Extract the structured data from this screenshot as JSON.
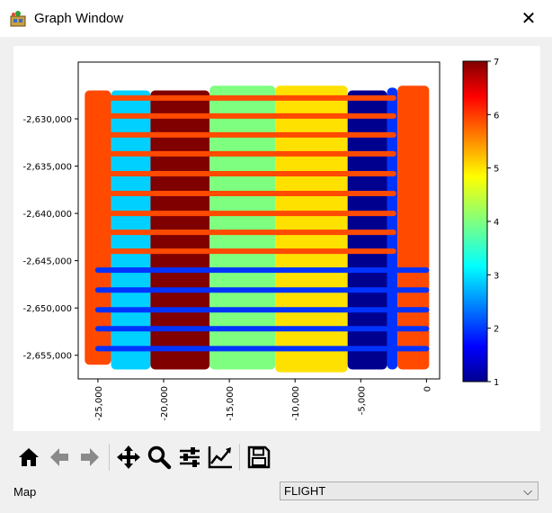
{
  "window": {
    "title": "Graph Window",
    "close_label": "✕"
  },
  "plot": {
    "yticks": [
      "-2,630,000",
      "-2,635,000",
      "-2,640,000",
      "-2,645,000",
      "-2,650,000",
      "-2,655,000"
    ],
    "xticks": [
      "-25,000",
      "-20,000",
      "-15,000",
      "-10,000",
      "-5,000",
      "0"
    ],
    "colorbar_ticks": [
      "7",
      "6",
      "5",
      "4",
      "3",
      "2",
      "1"
    ]
  },
  "toolbar": {
    "home": "home-icon",
    "back": "arrow-left-icon",
    "forward": "arrow-right-icon",
    "pan": "move-icon",
    "zoom": "zoom-icon",
    "configure": "sliders-icon",
    "edit_axes": "line-chart-icon",
    "save": "save-icon"
  },
  "map_label": "Map",
  "map_select": {
    "value": "FLIGHT",
    "arrow": "⌵"
  },
  "chart_data": {
    "type": "scatter",
    "title": "",
    "xlabel": "",
    "ylabel": "",
    "xlim": [
      -26500,
      1000
    ],
    "ylim": [
      -2657500,
      -2624000
    ],
    "color_variable": "FLIGHT",
    "colormap": "jet",
    "colorbar_range": [
      1,
      7
    ],
    "blocks": [
      {
        "flight": 6,
        "x_range": [
          -26000,
          -24000
        ],
        "y_range": [
          -2656000,
          -2627000
        ]
      },
      {
        "flight": 3,
        "x_range": [
          -24000,
          -21000
        ],
        "y_range": [
          -2656500,
          -2627000
        ]
      },
      {
        "flight": 7,
        "x_range": [
          -21000,
          -16500
        ],
        "y_range": [
          -2656500,
          -2627000
        ]
      },
      {
        "flight": 4,
        "x_range": [
          -16500,
          -11500
        ],
        "y_range": [
          -2656500,
          -2626500
        ]
      },
      {
        "flight": 5,
        "x_range": [
          -11500,
          -6000
        ],
        "y_range": [
          -2656800,
          -2626500
        ]
      },
      {
        "flight": 1,
        "x_range": [
          -6000,
          -3000
        ],
        "y_range": [
          -2656500,
          -2627000
        ]
      },
      {
        "flight": 2,
        "x_range": [
          -3000,
          -2200
        ],
        "y_range": [
          -2656500,
          -2626700
        ]
      },
      {
        "flight": 6,
        "x_range": [
          -2200,
          200
        ],
        "y_range": [
          -2656500,
          -2626500
        ]
      }
    ],
    "horizontal_lines": [
      {
        "flight": 6,
        "y": -2627800,
        "x_range": [
          -25000,
          -2500
        ]
      },
      {
        "flight": 6,
        "y": -2629700,
        "x_range": [
          -25000,
          -2500
        ]
      },
      {
        "flight": 6,
        "y": -2631700,
        "x_range": [
          -25000,
          -2500
        ]
      },
      {
        "flight": 6,
        "y": -2633700,
        "x_range": [
          -25000,
          -2500
        ]
      },
      {
        "flight": 6,
        "y": -2635800,
        "x_range": [
          -25000,
          -2500
        ]
      },
      {
        "flight": 6,
        "y": -2637900,
        "x_range": [
          -25000,
          -2500
        ]
      },
      {
        "flight": 6,
        "y": -2640000,
        "x_range": [
          -25000,
          -2500
        ]
      },
      {
        "flight": 6,
        "y": -2642000,
        "x_range": [
          -25000,
          -2500
        ]
      },
      {
        "flight": 6,
        "y": -2644000,
        "x_range": [
          -25000,
          -2500
        ]
      },
      {
        "flight": 2,
        "y": -2646000,
        "x_range": [
          -25000,
          0
        ]
      },
      {
        "flight": 2,
        "y": -2648100,
        "x_range": [
          -25000,
          0
        ]
      },
      {
        "flight": 2,
        "y": -2650200,
        "x_range": [
          -25000,
          0
        ]
      },
      {
        "flight": 2,
        "y": -2652200,
        "x_range": [
          -25000,
          0
        ]
      },
      {
        "flight": 2,
        "y": -2654300,
        "x_range": [
          -25000,
          0
        ]
      }
    ]
  },
  "colors": {
    "f1": "#00008f",
    "f2": "#0033ff",
    "f3": "#00d0ff",
    "f4": "#7fff7f",
    "f5": "#ffe100",
    "f6": "#ff4a00",
    "f7": "#800000"
  }
}
